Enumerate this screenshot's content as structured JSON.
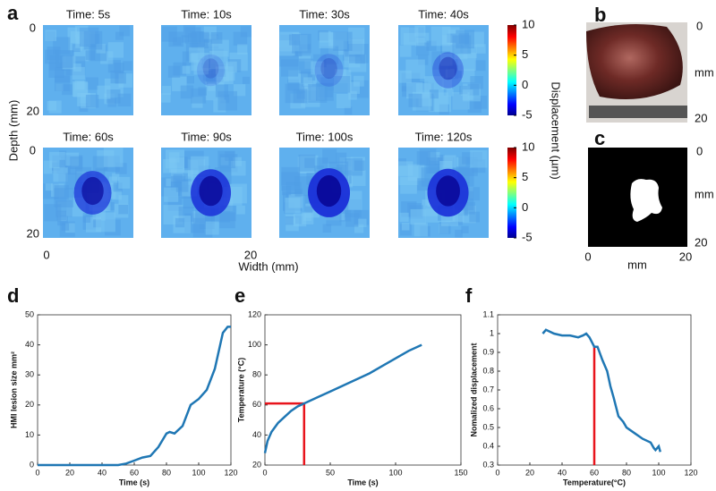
{
  "panel_labels": [
    "a",
    "b",
    "c",
    "d",
    "e",
    "f"
  ],
  "photo_axis": {
    "ticks": [
      0,
      20
    ],
    "label": "mm"
  },
  "mask_axis": {
    "ticks": [
      0,
      20
    ],
    "label": "mm"
  },
  "chart_data": [
    {
      "type": "heatmap",
      "titles": [
        "Time: 5s",
        "Time: 10s",
        "Time: 30s",
        "Time: 40s",
        "Time: 60s",
        "Time: 90s",
        "Time: 100s",
        "Time: 120s"
      ],
      "xlabel": "Width (mm)",
      "ylabel": "Depth (mm)",
      "xticks": [
        0,
        20
      ],
      "yticks": [
        0,
        20
      ],
      "colorbar": {
        "label": "Displacement (µm)",
        "lim": [
          -5,
          10
        ],
        "ticks": [
          10,
          5,
          0,
          -5
        ]
      }
    },
    {
      "type": "line",
      "xlabel": "Time (s)",
      "ylabel": "HMI lesion size mm²",
      "x": [
        0,
        10,
        20,
        30,
        40,
        50,
        55,
        60,
        65,
        70,
        75,
        80,
        82,
        85,
        90,
        95,
        100,
        105,
        110,
        115,
        118,
        120
      ],
      "values": [
        0,
        0,
        0,
        0,
        0,
        0,
        0.5,
        1.5,
        2.5,
        3,
        6,
        10.5,
        11,
        10.5,
        13,
        20,
        22,
        25,
        32,
        44,
        46,
        46
      ],
      "color": "#1f77b4",
      "xlim": [
        0,
        120
      ],
      "xticks": [
        0,
        20,
        40,
        60,
        80,
        100,
        120
      ],
      "ylim": [
        0,
        50
      ],
      "yticks": [
        0,
        10,
        20,
        30,
        40,
        50
      ]
    },
    {
      "type": "line",
      "xlabel": "Time (s)",
      "ylabel": "Temperature (°C)",
      "x": [
        0,
        2,
        5,
        10,
        15,
        20,
        25,
        30,
        40,
        50,
        60,
        70,
        80,
        90,
        100,
        110,
        120
      ],
      "values": [
        28,
        36,
        42,
        48,
        52,
        56,
        59,
        61,
        65,
        69,
        73,
        77,
        81,
        86,
        91,
        96,
        100
      ],
      "color": "#1f77b4",
      "xlim": [
        0,
        150
      ],
      "xticks": [
        0,
        50,
        100,
        150
      ],
      "ylim": [
        20,
        120
      ],
      "yticks": [
        20,
        40,
        60,
        80,
        100,
        120
      ],
      "guides": [
        {
          "x": 30,
          "y": 61,
          "color": "#e8141c"
        }
      ]
    },
    {
      "type": "line",
      "xlabel": "Temperature(°C)",
      "ylabel": "Nomalized displacement",
      "x": [
        28,
        30,
        35,
        40,
        45,
        50,
        53,
        55,
        57,
        60,
        62,
        65,
        68,
        70,
        72,
        75,
        78,
        80,
        85,
        90,
        95,
        97,
        98,
        100,
        101
      ],
      "values": [
        1,
        1.02,
        1,
        0.99,
        0.99,
        0.98,
        0.99,
        1,
        0.98,
        0.93,
        0.93,
        0.86,
        0.8,
        0.72,
        0.66,
        0.56,
        0.53,
        0.5,
        0.47,
        0.44,
        0.42,
        0.39,
        0.38,
        0.4,
        0.37
      ],
      "color": "#1f77b4",
      "xlim": [
        0,
        120
      ],
      "xticks": [
        0,
        20,
        40,
        60,
        80,
        100,
        120
      ],
      "ylim": [
        0.3,
        1.1
      ],
      "yticks": [
        0.3,
        0.4,
        0.5,
        0.6,
        0.7,
        0.8,
        0.9,
        1,
        1.1
      ],
      "guides": [
        {
          "x": 60,
          "y": 0.93,
          "color": "#e8141c"
        }
      ]
    }
  ]
}
